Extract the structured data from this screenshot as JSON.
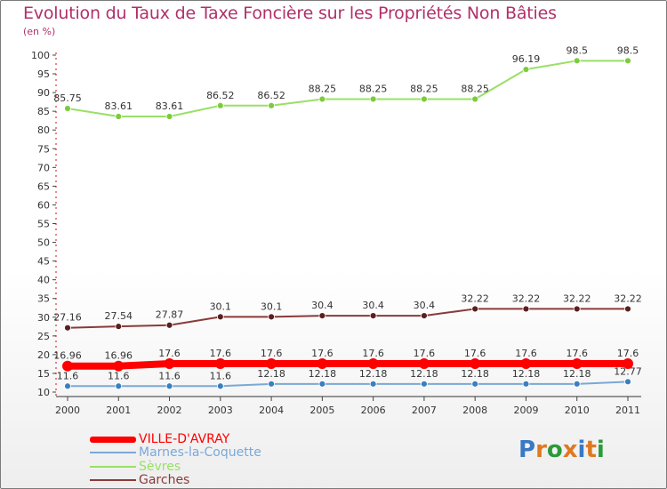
{
  "title": "Evolution du Taux de Taxe Foncière sur les Propriétés Non Bâties",
  "unit_label": "(en %)",
  "logo": {
    "letters": [
      "P",
      "r",
      "o",
      "x",
      "i",
      "t",
      "i"
    ],
    "colors": [
      "#3a78c4",
      "#e07820",
      "#2a9a3a",
      "#e07820",
      "#3a78c4",
      "#e07820",
      "#2a9a3a"
    ]
  },
  "chart_data": {
    "type": "line",
    "title": "Evolution du Taux de Taxe Foncière sur les Propriétés Non Bâties",
    "ylabel": "(en %)",
    "xlabel": "",
    "ylim": [
      10,
      100
    ],
    "ytick_labels": [
      "10",
      "15",
      "20",
      "25",
      "30",
      "35",
      "40",
      "45",
      "50",
      "55",
      "60",
      "65",
      "70",
      "75",
      "80",
      "85",
      "90",
      "95",
      "100"
    ],
    "categories": [
      "2000",
      "2001",
      "2002",
      "2003",
      "2004",
      "2005",
      "2006",
      "2007",
      "2008",
      "2009",
      "2010",
      "2011"
    ],
    "series": [
      {
        "name": "Sèvres",
        "color": "#99e066",
        "marker": "#7ccb3c",
        "values": [
          85.75,
          83.61,
          83.61,
          86.52,
          86.52,
          88.25,
          88.25,
          88.25,
          88.25,
          96.19,
          98.5,
          98.5
        ],
        "labels": [
          "85.75",
          "83.61",
          "83.61",
          "86.52",
          "86.52",
          "88.25",
          "88.25",
          "88.25",
          "88.25",
          "96.19",
          "98.5",
          "98.5"
        ]
      },
      {
        "name": "Garches",
        "color": "#8a3a3a",
        "marker": "#5a1f1f",
        "values": [
          27.16,
          27.54,
          27.87,
          30.1,
          30.1,
          30.4,
          30.4,
          30.4,
          32.22,
          32.22,
          32.22,
          32.22
        ],
        "labels": [
          "27.16",
          "27.54",
          "27.87",
          "30.1",
          "30.1",
          "30.4",
          "30.4",
          "30.4",
          "32.22",
          "32.22",
          "32.22",
          "32.22"
        ]
      },
      {
        "name": "Marnes-la-Coquette",
        "color": "#7aa8d8",
        "marker": "#3a7fc0",
        "values": [
          11.6,
          11.6,
          11.6,
          11.6,
          12.18,
          12.18,
          12.18,
          12.18,
          12.18,
          12.18,
          12.18,
          12.77
        ],
        "labels": [
          "11.6",
          "11.6",
          "11.6",
          "11.6",
          "12.18",
          "12.18",
          "12.18",
          "12.18",
          "12.18",
          "12.18",
          "12.18",
          "12.77"
        ]
      },
      {
        "name": "VILLE-D'AVRAY",
        "color": "#ff0000",
        "marker": "#ff0000",
        "values": [
          16.96,
          16.96,
          17.6,
          17.6,
          17.6,
          17.6,
          17.6,
          17.6,
          17.6,
          17.6,
          17.6,
          17.6
        ],
        "labels": [
          "16.96",
          "16.96",
          "17.6",
          "17.6",
          "17.6",
          "17.6",
          "17.6",
          "17.6",
          "17.6",
          "17.6",
          "17.6",
          "17.6"
        ]
      }
    ],
    "legend": [
      "VILLE-D'AVRAY",
      "Marnes-la-Coquette",
      "Sèvres",
      "Garches"
    ],
    "legend_colors": [
      "#ff0000",
      "#7aa8d8",
      "#99e066",
      "#8a3a3a"
    ],
    "legend_position": "bottom-left",
    "grid": false
  }
}
